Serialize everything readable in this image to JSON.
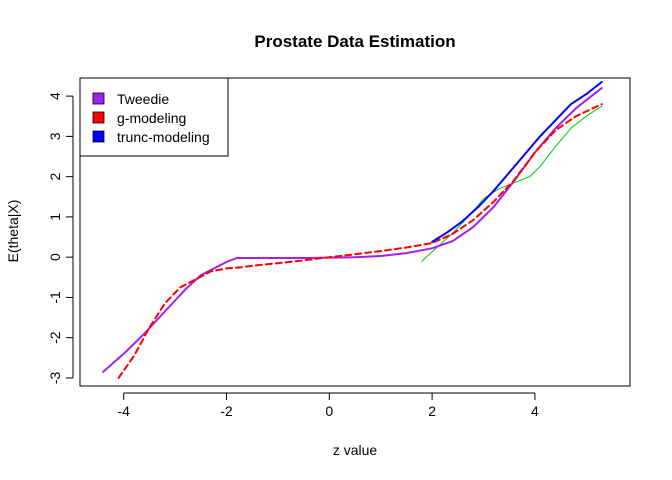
{
  "chart_data": {
    "type": "line",
    "title": "Prostate Data Estimation",
    "xlabel": "z value",
    "ylabel": "E(theta|X)",
    "xlim": [
      -4.85,
      5.85
    ],
    "ylim": [
      -3.2,
      4.45
    ],
    "xticks": [
      -4,
      -2,
      0,
      2,
      4
    ],
    "yticks": [
      -3,
      -2,
      -1,
      0,
      1,
      2,
      3,
      4
    ],
    "xtick_labels": [
      "-4",
      "-2",
      "0",
      "2",
      "4"
    ],
    "ytick_labels": [
      "-3",
      "-2",
      "-1",
      "0",
      "1",
      "2",
      "3",
      "4"
    ],
    "grid": false,
    "legend_position": "top-left",
    "legend": [
      {
        "label": "Tweedie",
        "color": "#a020f0"
      },
      {
        "label": "g-modeling",
        "color": "#ff0000"
      },
      {
        "label": "trunc-modeling",
        "color": "#0000ff"
      }
    ],
    "series": [
      {
        "name": "Tweedie",
        "color": "#a020f0",
        "style": "solid",
        "x": [
          -4.4,
          -4.0,
          -3.6,
          -3.2,
          -2.8,
          -2.5,
          -2.2,
          -2.0,
          -1.8,
          -1.5,
          -1.0,
          -0.5,
          0.0,
          0.5,
          1.0,
          1.5,
          2.0,
          2.4,
          2.8,
          3.2,
          3.6,
          4.0,
          4.4,
          4.8,
          5.3
        ],
        "y": [
          -2.85,
          -2.4,
          -1.9,
          -1.35,
          -0.8,
          -0.45,
          -0.25,
          -0.12,
          -0.02,
          -0.02,
          -0.02,
          -0.02,
          -0.01,
          0.0,
          0.03,
          0.1,
          0.22,
          0.4,
          0.75,
          1.25,
          1.9,
          2.6,
          3.2,
          3.7,
          4.2
        ]
      },
      {
        "name": "g-modeling",
        "color": "#ff0000",
        "style": "dashed",
        "x": [
          -4.1,
          -3.8,
          -3.5,
          -3.2,
          -2.9,
          -2.6,
          -2.3,
          -2.0,
          -1.7,
          -1.4,
          -1.0,
          -0.5,
          0.0,
          0.5,
          1.0,
          1.5,
          2.0,
          2.4,
          2.8,
          3.2,
          3.6,
          4.0,
          4.4,
          4.8,
          5.3
        ],
        "y": [
          -3.0,
          -2.45,
          -1.75,
          -1.15,
          -0.75,
          -0.55,
          -0.35,
          -0.28,
          -0.25,
          -0.2,
          -0.15,
          -0.08,
          0.0,
          0.07,
          0.15,
          0.24,
          0.35,
          0.58,
          0.92,
          1.38,
          1.92,
          2.6,
          3.15,
          3.5,
          3.8
        ]
      },
      {
        "name": "trunc-modeling",
        "color": "#0000ff",
        "style": "solid",
        "x": [
          2.0,
          2.3,
          2.6,
          2.9,
          3.2,
          3.5,
          3.8,
          4.1,
          4.4,
          4.7,
          5.0,
          5.3
        ],
        "y": [
          0.38,
          0.62,
          0.9,
          1.25,
          1.65,
          2.1,
          2.55,
          3.0,
          3.4,
          3.8,
          4.05,
          4.35
        ]
      },
      {
        "name": "",
        "color": "#00cc00",
        "style": "thin",
        "x": [
          1.8,
          2.1,
          2.4,
          2.7,
          3.0,
          3.3,
          3.6,
          3.9,
          4.1,
          4.4,
          4.7,
          5.0,
          5.3
        ],
        "y": [
          -0.1,
          0.25,
          0.6,
          1.0,
          1.45,
          1.7,
          1.85,
          2.0,
          2.25,
          2.75,
          3.2,
          3.5,
          3.75
        ]
      }
    ]
  }
}
